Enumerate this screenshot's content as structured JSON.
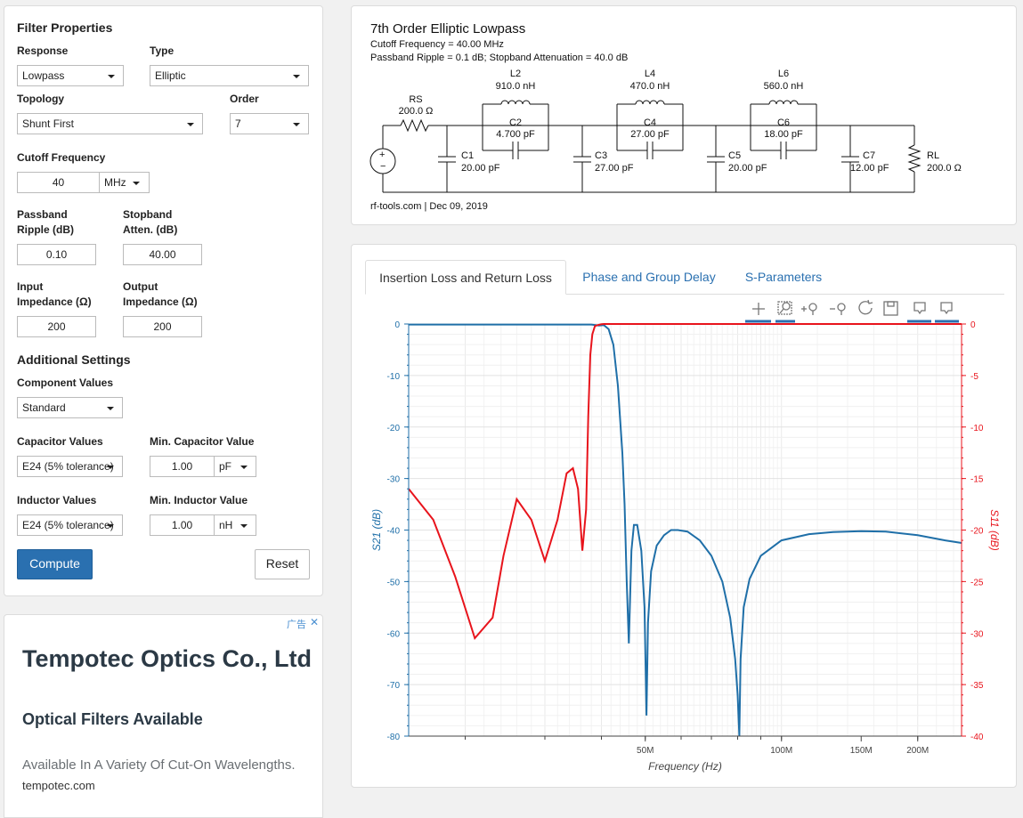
{
  "form": {
    "title": "Filter Properties",
    "response_label": "Response",
    "response_value": "Lowpass",
    "type_label": "Type",
    "type_value": "Elliptic",
    "topology_label": "Topology",
    "topology_value": "Shunt First",
    "order_label": "Order",
    "order_value": "7",
    "cutoff_label": "Cutoff Frequency",
    "cutoff_value": "40",
    "cutoff_unit": "MHz",
    "ripple_label_1": "Passband",
    "ripple_label_2": "Ripple (dB)",
    "ripple_value": "0.10",
    "atten_label_1": "Stopband",
    "atten_label_2": "Atten. (dB)",
    "atten_value": "40.00",
    "in_imp_label_1": "Input",
    "in_imp_label_2": "Impedance (Ω)",
    "in_imp_value": "200",
    "out_imp_label_1": "Output",
    "out_imp_label_2": "Impedance (Ω)",
    "out_imp_value": "200",
    "additional_title": "Additional Settings",
    "component_values_label": "Component Values",
    "component_values_value": "Standard",
    "cap_values_label": "Capacitor Values",
    "cap_values_value": "E24 (5% tolerance)",
    "min_cap_label": "Min. Capacitor Value",
    "min_cap_value": "1.00",
    "min_cap_unit": "pF",
    "ind_values_label": "Inductor Values",
    "ind_values_value": "E24 (5% tolerance)",
    "min_ind_label": "Min. Inductor Value",
    "min_ind_value": "1.00",
    "min_ind_unit": "nH",
    "compute_label": "Compute",
    "reset_label": "Reset"
  },
  "ad": {
    "badge": "广告",
    "close": "✕",
    "headline": "Tempotec Optics Co., Ltd",
    "subhead": "Optical Filters Available",
    "body": "Available In A Variety Of Cut-On Wavelengths.",
    "domain": "tempotec.com"
  },
  "schematic": {
    "title": "7th Order Elliptic Lowpass",
    "line1": "Cutoff Frequency = 40.00 MHz",
    "line2": "Passband Ripple = 0.1 dB; Stopband Attenuation = 40.0 dB",
    "rs_name": "RS",
    "rs_value": "200.0 Ω",
    "l2_name": "L2",
    "l2_value": "910.0 nH",
    "c2_name": "C2",
    "c2_value": "4.700 pF",
    "l4_name": "L4",
    "l4_value": "470.0 nH",
    "c4_name": "C4",
    "c4_value": "27.00 pF",
    "l6_name": "L6",
    "l6_value": "560.0 nH",
    "c6_name": "C6",
    "c6_value": "18.00 pF",
    "c1_name": "C1",
    "c1_value": "20.00 pF",
    "c3_name": "C3",
    "c3_value": "27.00 pF",
    "c5_name": "C5",
    "c5_value": "20.00 pF",
    "c7_name": "C7",
    "c7_value": "12.00 pF",
    "rl_name": "RL",
    "rl_value": "200.0 Ω",
    "footer": "rf-tools.com | Dec 09, 2019"
  },
  "tabs": [
    {
      "label": "Insertion Loss and Return Loss",
      "active": true
    },
    {
      "label": "Phase and Group Delay",
      "active": false
    },
    {
      "label": "S-Parameters",
      "active": false
    }
  ],
  "toolbar_icons": [
    "pan-icon",
    "box-zoom-icon",
    "zoom-in-icon",
    "zoom-out-icon",
    "reset-icon",
    "save-icon",
    "hover-icon",
    "hover-icon-2"
  ],
  "chart_data": {
    "type": "line",
    "xlabel": "Frequency (Hz)",
    "ylabel": "S21 (dB)",
    "y2label": "S11 (dB)",
    "xscale": "log",
    "xlim": [
      15000000,
      250000000
    ],
    "ylim": [
      -80,
      0
    ],
    "y2lim": [
      -40,
      0
    ],
    "x_tick_labels": [
      "50M",
      "100M",
      "150M",
      "200M"
    ],
    "x_ticks": [
      50000000,
      100000000,
      150000000,
      200000000
    ],
    "y_ticks": [
      0,
      -10,
      -20,
      -30,
      -40,
      -50,
      -60,
      -70,
      -80
    ],
    "y2_ticks": [
      0,
      -5,
      -10,
      -15,
      -20,
      -25,
      -30,
      -35,
      -40
    ],
    "grid": true,
    "colors": {
      "s21": "#1f6fa8",
      "s11": "#e8141c"
    },
    "series": [
      {
        "key": "s21",
        "axis": "left",
        "x": [
          15000000,
          20000000,
          25000000,
          30000000,
          35000000,
          38000000,
          39500000,
          40500000,
          41500000,
          42500000,
          43500000,
          44500000,
          45000000,
          45500000,
          46000000,
          46600000,
          47200000,
          48000000,
          49000000,
          49800000,
          50300000,
          50700000,
          51500000,
          53000000,
          55000000,
          57000000,
          59000000,
          62000000,
          66000000,
          70000000,
          74000000,
          77000000,
          79000000,
          80000000,
          80700000,
          81200000,
          82500000,
          85000000,
          90000000,
          100000000,
          115000000,
          130000000,
          150000000,
          170000000,
          200000000,
          230000000,
          250000000
        ],
        "y": [
          -0.1,
          -0.1,
          -0.1,
          -0.1,
          -0.1,
          -0.1,
          -0.3,
          -0.2,
          -1,
          -4,
          -12,
          -25,
          -35,
          -50,
          -62,
          -44,
          -39,
          -39,
          -44,
          -55,
          -76,
          -58,
          -48,
          -43,
          -41,
          -40,
          -40,
          -40.3,
          -42,
          -45,
          -50,
          -57,
          -65,
          -72,
          -80,
          -65,
          -55,
          -49.5,
          -45,
          -42,
          -40.8,
          -40.4,
          -40.2,
          -40.3,
          -41,
          -42,
          -42.5
        ]
      },
      {
        "key": "s11",
        "axis": "right",
        "x": [
          15000000,
          17000000,
          19000000,
          21000000,
          23000000,
          24300000,
          26000000,
          28000000,
          30000000,
          32000000,
          33500000,
          34600000,
          35500000,
          36300000,
          37000000,
          37400000,
          37800000,
          38200000,
          38700000,
          39300000,
          39700000,
          40000000,
          40500000,
          42000000,
          50000000,
          100000000,
          250000000
        ],
        "y": [
          -16,
          -19,
          -24.5,
          -30.5,
          -28.5,
          -22.5,
          -17,
          -19,
          -23,
          -19,
          -14.5,
          -14,
          -16,
          -22,
          -18,
          -9,
          -3,
          -1,
          -0.2,
          -0.1,
          -0.05,
          -0.02,
          0,
          0,
          0,
          0,
          0
        ]
      }
    ]
  }
}
